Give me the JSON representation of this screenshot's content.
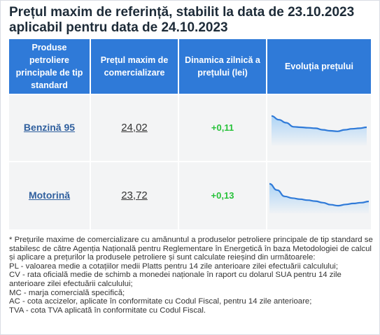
{
  "header": {
    "title_line1": "Prețul maxim de referință, stabilit la data de 23.10.2023",
    "title_line2": "aplicabil pentru data de 24.10.2023"
  },
  "table": {
    "columns": [
      "Produse petroliere principale de tip standard",
      "Prețul maxim de comercializare",
      "Dinamica zilnică a prețului (lei)",
      "Evoluția prețului"
    ],
    "rows": [
      {
        "product": "Benzină 95",
        "price": "24,02",
        "change": "+0,11",
        "trend": [
          24.45,
          24.3,
          24.18,
          24.02,
          24.0,
          23.98,
          23.96,
          23.9,
          23.86,
          23.84,
          23.9,
          23.94,
          23.96,
          24.0
        ]
      },
      {
        "product": "Motorină",
        "price": "23,72",
        "change": "+0,13",
        "trend": [
          24.45,
          24.2,
          23.95,
          23.88,
          23.84,
          23.8,
          23.76,
          23.7,
          23.62,
          23.58,
          23.63,
          23.67,
          23.7,
          23.75
        ]
      }
    ]
  },
  "colors": {
    "header_bg": "#2f7ad8",
    "row_bg": "#f3f4f5",
    "link": "#2f5f9e",
    "positive": "#27c23a",
    "spark_line": "#2f7ad8",
    "spark_fill": "#a9d2f6"
  },
  "footnote": [
    "* Prețurile maxime de comercializare cu amănuntul a produselor petroliere principale de tip standard se stabilesc de către Agenția Națională pentru Reglementare în Energetică în baza Metodologiei de calcul și aplicare a prețurilor la produsele petroliere și sunt calculate reieșind din următoarele:",
    "PL - valoarea medie a cotațiilor medii Platts pentru 14 zile anterioare zilei efectuării calculului;",
    "CV - rata oficială medie de schimb a monedei naționale în raport cu dolarul SUA pentru 14 zile anterioare zilei efectuării calculului;",
    "MC - marja comercială specifică;",
    "AC - cota accizelor, aplicate în conformitate cu Codul Fiscal, pentru 14 zile anterioare;",
    "TVA - cota TVA aplicată în conformitate cu Codul Fiscal."
  ]
}
